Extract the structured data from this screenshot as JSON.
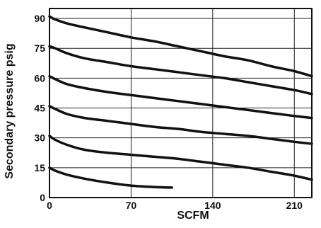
{
  "chart_data": {
    "type": "line",
    "title": "",
    "xlabel": "SCFM",
    "ylabel": "Secondary pressure psig",
    "xlim": [
      0,
      225
    ],
    "ylim": [
      0,
      95
    ],
    "xticks": [
      "0",
      "70",
      "140",
      "210"
    ],
    "yticks": [
      "0",
      "15",
      "30",
      "45",
      "60",
      "75",
      "90"
    ],
    "grid": true,
    "series": [
      {
        "x": [
          0,
          5,
          15,
          30,
          50,
          70,
          90,
          105
        ],
        "y": [
          15,
          13.5,
          11.5,
          9.5,
          7.5,
          6,
          5.3,
          5
        ]
      },
      {
        "x": [
          0,
          5,
          15,
          30,
          50,
          70,
          90,
          110,
          130,
          150,
          170,
          190,
          210,
          225
        ],
        "y": [
          31,
          29,
          26.5,
          24,
          22.5,
          21.5,
          20.5,
          19.5,
          18,
          16.5,
          15,
          13,
          11,
          9
        ]
      },
      {
        "x": [
          0,
          5,
          15,
          30,
          50,
          70,
          90,
          110,
          130,
          150,
          170,
          190,
          210,
          225
        ],
        "y": [
          46,
          44.5,
          42,
          40,
          38.5,
          37,
          35.5,
          34.5,
          33,
          32,
          31,
          29.5,
          28,
          27
        ]
      },
      {
        "x": [
          0,
          5,
          15,
          30,
          50,
          70,
          90,
          110,
          130,
          150,
          170,
          190,
          210,
          225
        ],
        "y": [
          61,
          59.5,
          57,
          55,
          53,
          51.5,
          50,
          48.5,
          47,
          45.5,
          44,
          42.5,
          41,
          40
        ]
      },
      {
        "x": [
          0,
          5,
          15,
          30,
          50,
          70,
          90,
          110,
          130,
          150,
          170,
          190,
          210,
          225
        ],
        "y": [
          76,
          75,
          72.5,
          70,
          68,
          66,
          64.5,
          63,
          61.5,
          60,
          58,
          56,
          54,
          52
        ]
      },
      {
        "x": [
          0,
          5,
          15,
          30,
          50,
          70,
          90,
          110,
          130,
          150,
          170,
          190,
          210,
          225
        ],
        "y": [
          91,
          89.5,
          87.5,
          85.5,
          83,
          80.5,
          78.5,
          76,
          73.5,
          71,
          69,
          66,
          63.5,
          61
        ]
      }
    ]
  }
}
